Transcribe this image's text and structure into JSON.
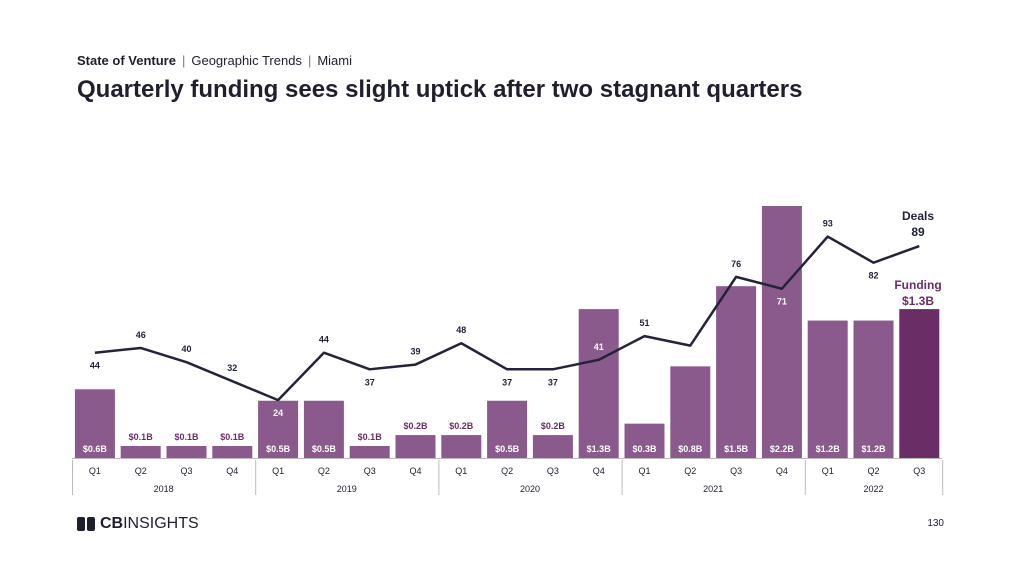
{
  "header": {
    "series_label": "State of Venture",
    "section": "Geographic Trends",
    "location": "Miami"
  },
  "title": "Quarterly funding sees slight uptick after two stagnant quarters",
  "footer": {
    "logo_bold": "CB",
    "logo_rest": "INSIGHTS",
    "page_number": "130"
  },
  "colors": {
    "bar": "#8b5a8c",
    "bar_highlight": "#6b2d66",
    "line": "#23243a",
    "label_text": "#ffffff",
    "label_dark": "#6b2d66"
  },
  "chart_data": {
    "type": "bar+line",
    "quarters": [
      "Q1",
      "Q2",
      "Q3",
      "Q4",
      "Q1",
      "Q2",
      "Q3",
      "Q4",
      "Q1",
      "Q2",
      "Q3",
      "Q4",
      "Q1",
      "Q2",
      "Q3",
      "Q4",
      "Q1",
      "Q2",
      "Q3"
    ],
    "years": [
      {
        "label": "2018",
        "count": 4
      },
      {
        "label": "2019",
        "count": 4
      },
      {
        "label": "2020",
        "count": 4
      },
      {
        "label": "2021",
        "count": 4
      },
      {
        "label": "2022",
        "count": 3
      }
    ],
    "funding_values": [
      0.6,
      0.1,
      0.1,
      0.1,
      0.5,
      0.5,
      0.1,
      0.2,
      0.2,
      0.5,
      0.2,
      1.3,
      0.3,
      0.8,
      1.5,
      2.2,
      1.2,
      1.2,
      1.3
    ],
    "funding_labels": [
      "$0.6B",
      "$0.1B",
      "$0.1B",
      "$0.1B",
      "$0.5B",
      "$0.5B",
      "$0.1B",
      "$0.2B",
      "$0.2B",
      "$0.5B",
      "$0.2B",
      "$1.3B",
      "$0.3B",
      "$0.8B",
      "$1.5B",
      "$2.2B",
      "$1.2B",
      "$1.2B",
      "$1.3B"
    ],
    "deals": [
      44,
      46,
      40,
      32,
      24,
      44,
      37,
      39,
      48,
      37,
      37,
      41,
      51,
      47,
      76,
      71,
      93,
      82,
      89
    ],
    "legend": {
      "deals_label": "Deals",
      "deals_value": "89",
      "funding_label": "Funding",
      "funding_value": "$1.3B"
    }
  }
}
